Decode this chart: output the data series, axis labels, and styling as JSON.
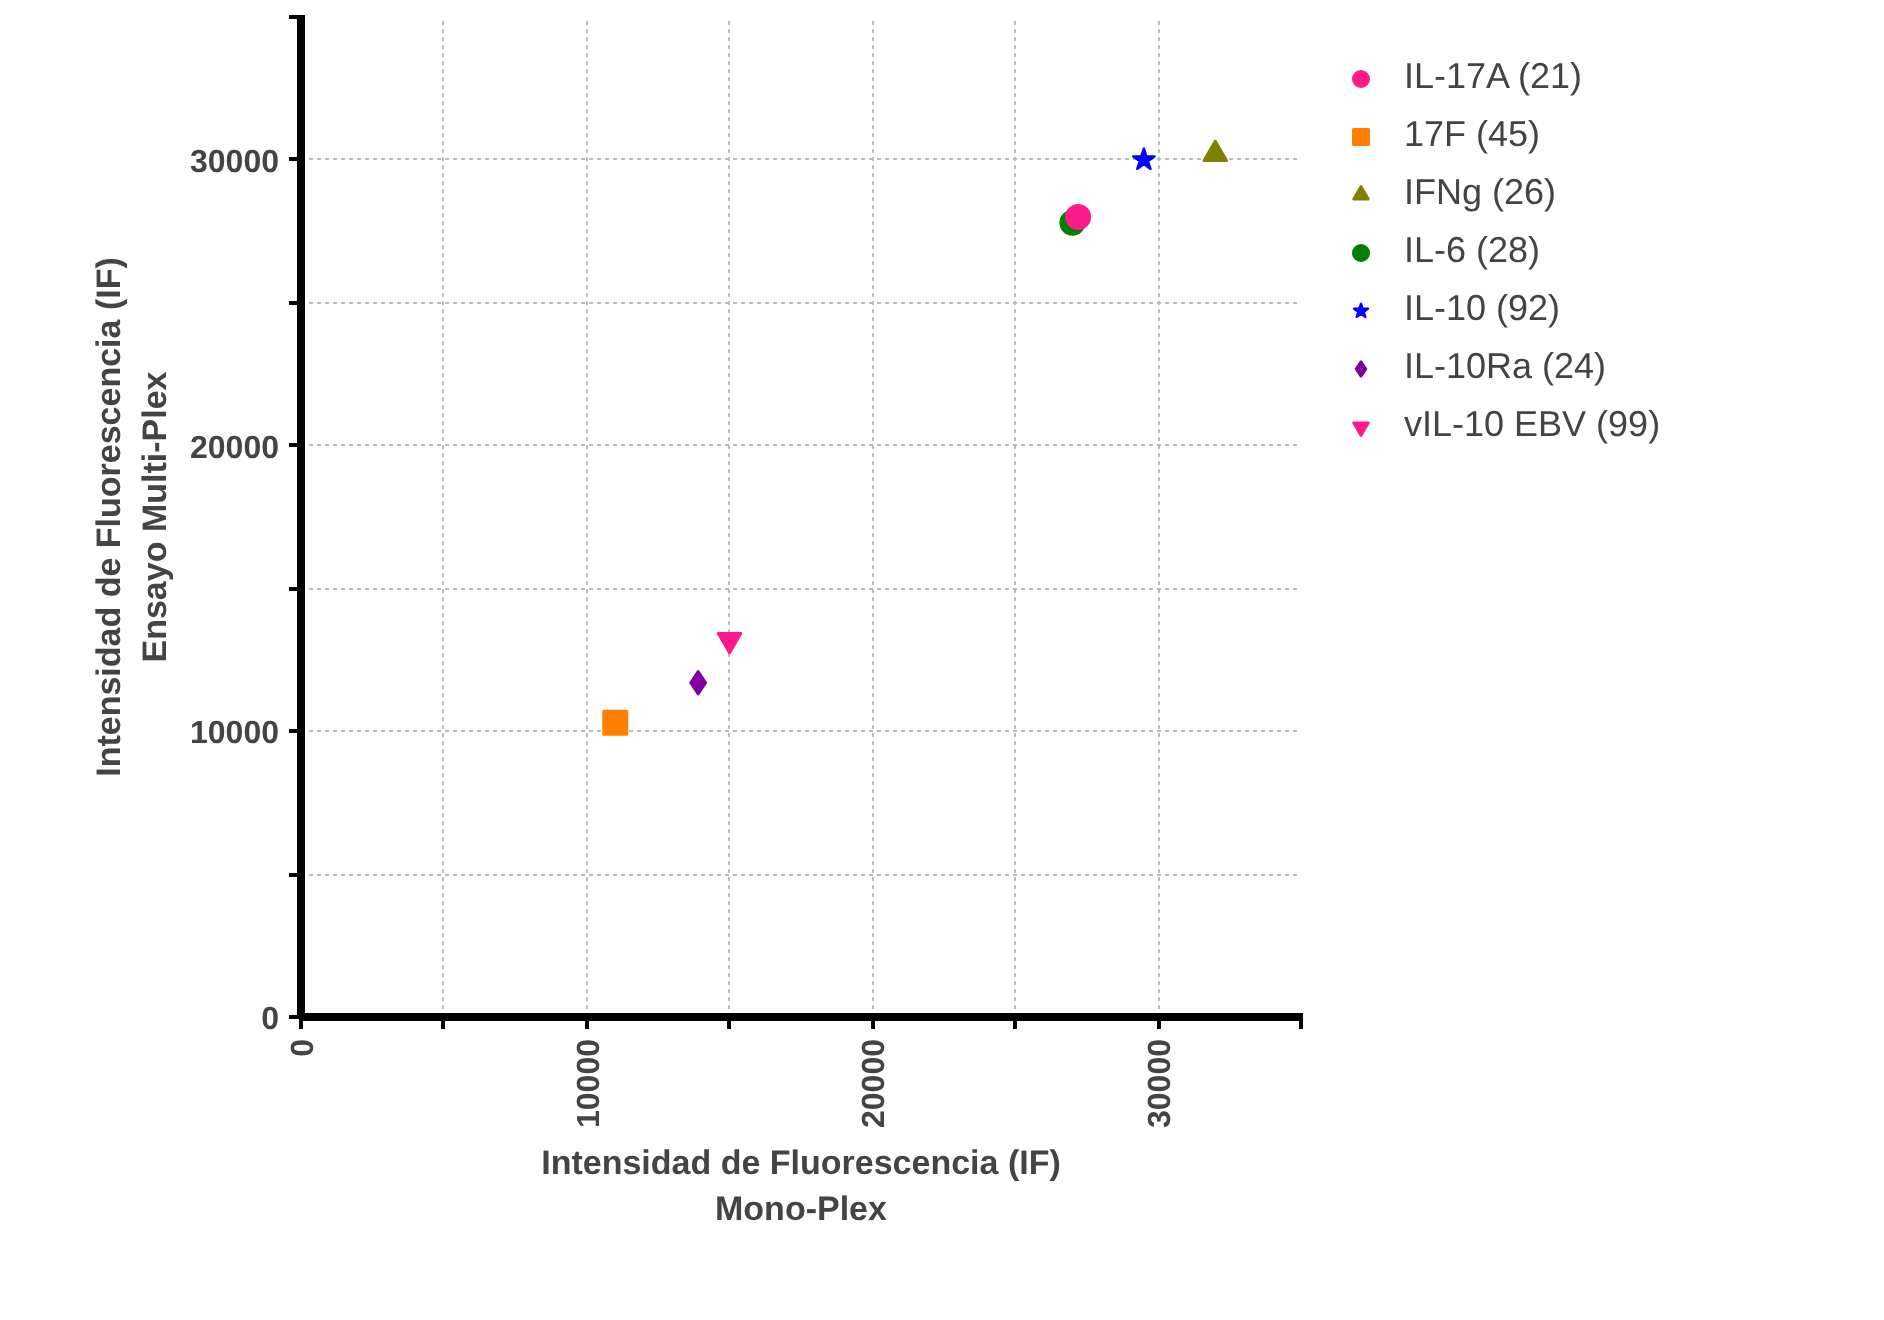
{
  "chart_data": {
    "type": "scatter",
    "xlabel": "Intensidad de Fluorescencia (IF)\nMono-Plex",
    "ylabel": "Intensidad de Fluorescencia (IF)\nEnsayo Multi-Plex",
    "xlim": [
      0,
      35000
    ],
    "ylim": [
      0,
      35000
    ],
    "xticks": [
      0,
      {
        "value": 5000,
        "label": null
      },
      10000,
      {
        "value": 15000,
        "label": null
      },
      20000,
      {
        "value": 25000,
        "label": null
      },
      30000,
      {
        "value": 35000,
        "label": null
      }
    ],
    "yticks": [
      0,
      {
        "value": 5000,
        "label": null
      },
      10000,
      {
        "value": 15000,
        "label": null
      },
      20000,
      {
        "value": 25000,
        "label": null
      },
      30000,
      {
        "value": 35000,
        "label": null
      }
    ],
    "grid": true,
    "legend": "right",
    "series": [
      {
        "name": "IL-17A (21)",
        "color": "#ff1a8c",
        "marker": "circle",
        "x": [
          27200
        ],
        "values": [
          28000
        ]
      },
      {
        "name": "17F (45)",
        "color": "#ff8000",
        "marker": "square",
        "x": [
          11000
        ],
        "values": [
          10300
        ]
      },
      {
        "name": "IFNg (26)",
        "color": "#808000",
        "marker": "triangle",
        "x": [
          32000
        ],
        "values": [
          30200
        ]
      },
      {
        "name": "IL-6 (28)",
        "color": "#008000",
        "marker": "circle",
        "x": [
          27000
        ],
        "values": [
          27800
        ]
      },
      {
        "name": "IL-10 (92)",
        "color": "#0000ff",
        "marker": "star",
        "x": [
          29500
        ],
        "values": [
          30000
        ]
      },
      {
        "name": "IL-10Ra (24)",
        "color": "#7f00a0",
        "marker": "diamond",
        "x": [
          13900
        ],
        "values": [
          11700
        ]
      },
      {
        "name": "vIL-10 EBV (99)",
        "color": "#ff1a8c",
        "x": [
          15000
        ],
        "values": [
          13200
        ]
      }
    ]
  }
}
